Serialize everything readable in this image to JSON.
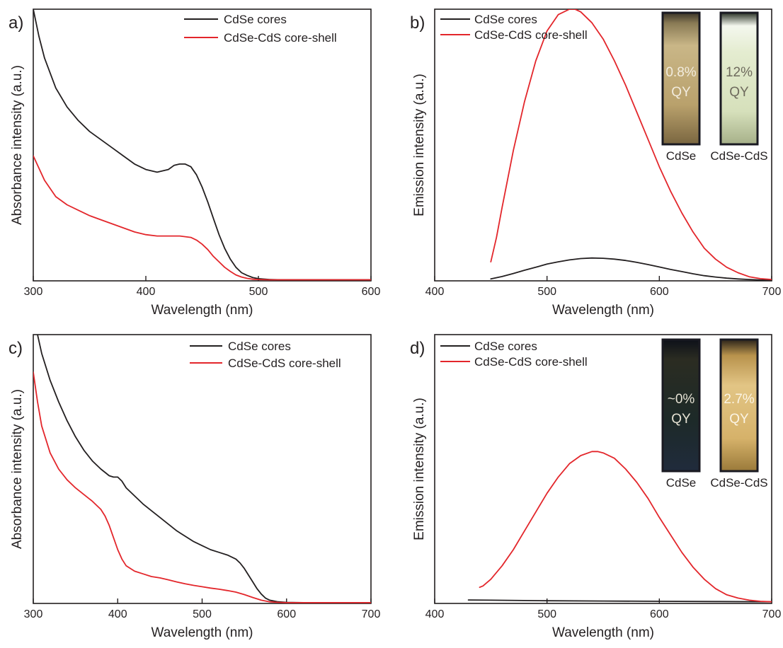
{
  "colors": {
    "cores": "#231f20",
    "shell": "#e3262b",
    "axis": "#231f20"
  },
  "chart_data": [
    {
      "panel": "a)",
      "type": "line",
      "xlabel": "Wavelength (nm)",
      "ylabel": "Absorbance intensity (a.u.)",
      "xlim": [
        300,
        600
      ],
      "ylim": [
        0,
        1
      ],
      "xticks": [
        300,
        400,
        500,
        600
      ],
      "legend": "top-right",
      "series": [
        {
          "name": "CdSe cores",
          "color": "#231f20",
          "x": [
            300,
            305,
            310,
            320,
            330,
            340,
            350,
            360,
            370,
            380,
            390,
            400,
            410,
            420,
            425,
            430,
            435,
            440,
            445,
            450,
            455,
            460,
            465,
            470,
            475,
            480,
            485,
            490,
            495,
            500,
            510,
            520,
            540,
            560,
            580,
            600
          ],
          "y": [
            1.0,
            0.9,
            0.82,
            0.71,
            0.64,
            0.59,
            0.55,
            0.52,
            0.49,
            0.46,
            0.43,
            0.41,
            0.4,
            0.41,
            0.425,
            0.43,
            0.43,
            0.42,
            0.39,
            0.345,
            0.29,
            0.23,
            0.17,
            0.12,
            0.08,
            0.05,
            0.03,
            0.02,
            0.012,
            0.008,
            0.005,
            0.004,
            0.004,
            0.004,
            0.004,
            0.004
          ]
        },
        {
          "name": "CdSe-CdS core-shell",
          "color": "#e3262b",
          "x": [
            300,
            310,
            320,
            330,
            340,
            350,
            360,
            370,
            380,
            390,
            400,
            410,
            420,
            430,
            440,
            445,
            450,
            455,
            460,
            465,
            470,
            475,
            480,
            485,
            490,
            495,
            500,
            510,
            520,
            540,
            560,
            580,
            600
          ],
          "y": [
            0.46,
            0.37,
            0.31,
            0.28,
            0.26,
            0.24,
            0.225,
            0.21,
            0.195,
            0.18,
            0.17,
            0.165,
            0.165,
            0.165,
            0.16,
            0.15,
            0.135,
            0.115,
            0.09,
            0.07,
            0.05,
            0.035,
            0.022,
            0.014,
            0.009,
            0.006,
            0.005,
            0.004,
            0.004,
            0.004,
            0.004,
            0.004,
            0.004
          ]
        }
      ]
    },
    {
      "panel": "b)",
      "type": "line",
      "xlabel": "Wavelength (nm)",
      "ylabel": "Emission intensity (a.u.)",
      "xlim": [
        400,
        700
      ],
      "ylim": [
        0,
        1
      ],
      "xticks": [
        400,
        500,
        600,
        700
      ],
      "legend": "top-left",
      "series": [
        {
          "name": "CdSe cores",
          "color": "#231f20",
          "x": [
            450,
            460,
            470,
            480,
            490,
            500,
            510,
            520,
            530,
            540,
            550,
            560,
            570,
            580,
            590,
            600,
            610,
            620,
            630,
            640,
            650,
            660,
            670,
            680,
            690,
            700
          ],
          "y": [
            0.007,
            0.016,
            0.027,
            0.039,
            0.05,
            0.062,
            0.07,
            0.077,
            0.082,
            0.084,
            0.083,
            0.08,
            0.075,
            0.068,
            0.06,
            0.051,
            0.042,
            0.034,
            0.026,
            0.019,
            0.014,
            0.01,
            0.007,
            0.005,
            0.003,
            0.002
          ]
        },
        {
          "name": "CdSe-CdS core-shell",
          "color": "#e3262b",
          "x": [
            450,
            455,
            460,
            470,
            480,
            490,
            500,
            510,
            520,
            525,
            530,
            540,
            550,
            560,
            570,
            580,
            590,
            600,
            610,
            620,
            630,
            640,
            650,
            660,
            670,
            680,
            690,
            700
          ],
          "y": [
            0.07,
            0.16,
            0.27,
            0.48,
            0.66,
            0.81,
            0.92,
            0.98,
            1.0,
            1.0,
            0.99,
            0.95,
            0.89,
            0.81,
            0.72,
            0.62,
            0.52,
            0.42,
            0.33,
            0.25,
            0.18,
            0.12,
            0.08,
            0.05,
            0.03,
            0.015,
            0.008,
            0.005
          ]
        }
      ],
      "vials": [
        {
          "percent": "0.8%",
          "qy": "QY",
          "caption": "CdSe"
        },
        {
          "percent": "12%",
          "qy": "QY",
          "caption": "CdSe-CdS"
        }
      ]
    },
    {
      "panel": "c)",
      "type": "line",
      "xlabel": "Wavelength (nm)",
      "ylabel": "Absorbance intensity (a.u.)",
      "xlim": [
        300,
        700
      ],
      "ylim": [
        0,
        1
      ],
      "xticks": [
        300,
        400,
        500,
        600,
        700
      ],
      "legend": "top-right",
      "series": [
        {
          "name": "CdSe cores",
          "color": "#231f20",
          "x": [
            300,
            305,
            310,
            320,
            330,
            340,
            350,
            360,
            370,
            380,
            390,
            395,
            400,
            405,
            410,
            420,
            430,
            440,
            450,
            460,
            470,
            480,
            490,
            500,
            510,
            520,
            530,
            540,
            545,
            550,
            555,
            560,
            565,
            570,
            575,
            580,
            590,
            600,
            620,
            650,
            700
          ],
          "y": [
            1.08,
            1.0,
            0.93,
            0.83,
            0.75,
            0.68,
            0.62,
            0.57,
            0.53,
            0.5,
            0.475,
            0.47,
            0.47,
            0.455,
            0.43,
            0.4,
            0.37,
            0.345,
            0.32,
            0.295,
            0.27,
            0.25,
            0.23,
            0.215,
            0.2,
            0.19,
            0.18,
            0.165,
            0.15,
            0.13,
            0.105,
            0.08,
            0.055,
            0.035,
            0.02,
            0.012,
            0.006,
            0.004,
            0.003,
            0.003,
            0.003
          ]
        },
        {
          "name": "CdSe-CdS core-shell",
          "color": "#e3262b",
          "x": [
            300,
            305,
            310,
            320,
            330,
            340,
            350,
            360,
            370,
            380,
            385,
            390,
            395,
            400,
            405,
            410,
            420,
            430,
            440,
            450,
            460,
            470,
            480,
            490,
            500,
            510,
            520,
            530,
            540,
            550,
            560,
            570,
            580,
            590,
            600,
            620,
            650,
            700
          ],
          "y": [
            0.86,
            0.75,
            0.66,
            0.56,
            0.5,
            0.46,
            0.43,
            0.405,
            0.38,
            0.35,
            0.325,
            0.29,
            0.245,
            0.2,
            0.165,
            0.14,
            0.12,
            0.11,
            0.1,
            0.095,
            0.088,
            0.08,
            0.073,
            0.067,
            0.062,
            0.057,
            0.053,
            0.048,
            0.042,
            0.033,
            0.022,
            0.012,
            0.006,
            0.004,
            0.003,
            0.003,
            0.003,
            0.003
          ]
        }
      ]
    },
    {
      "panel": "d)",
      "type": "line",
      "xlabel": "Wavelength (nm)",
      "ylabel": "Emission intensity (a.u.)",
      "xlim": [
        400,
        700
      ],
      "ylim": [
        0,
        1
      ],
      "xticks": [
        400,
        500,
        600,
        700
      ],
      "legend": "top-left",
      "series": [
        {
          "name": "CdSe cores",
          "color": "#231f20",
          "x": [
            430,
            450,
            500,
            550,
            600,
            650,
            700
          ],
          "y": [
            0.013,
            0.012,
            0.01,
            0.009,
            0.008,
            0.007,
            0.006
          ]
        },
        {
          "name": "CdSe-CdS core-shell",
          "color": "#e3262b",
          "x": [
            440,
            443,
            450,
            460,
            470,
            480,
            490,
            500,
            510,
            520,
            530,
            540,
            545,
            550,
            560,
            570,
            580,
            590,
            600,
            610,
            620,
            630,
            640,
            650,
            660,
            670,
            680,
            690,
            700
          ],
          "y": [
            0.06,
            0.065,
            0.09,
            0.14,
            0.2,
            0.27,
            0.34,
            0.41,
            0.47,
            0.52,
            0.55,
            0.565,
            0.565,
            0.56,
            0.54,
            0.5,
            0.45,
            0.39,
            0.32,
            0.255,
            0.19,
            0.135,
            0.09,
            0.055,
            0.032,
            0.02,
            0.012,
            0.008,
            0.006
          ]
        }
      ],
      "vials": [
        {
          "percent": "~0%",
          "qy": "QY",
          "caption": "CdSe"
        },
        {
          "percent": "2.7%",
          "qy": "QY",
          "caption": "CdSe-CdS"
        }
      ]
    }
  ]
}
